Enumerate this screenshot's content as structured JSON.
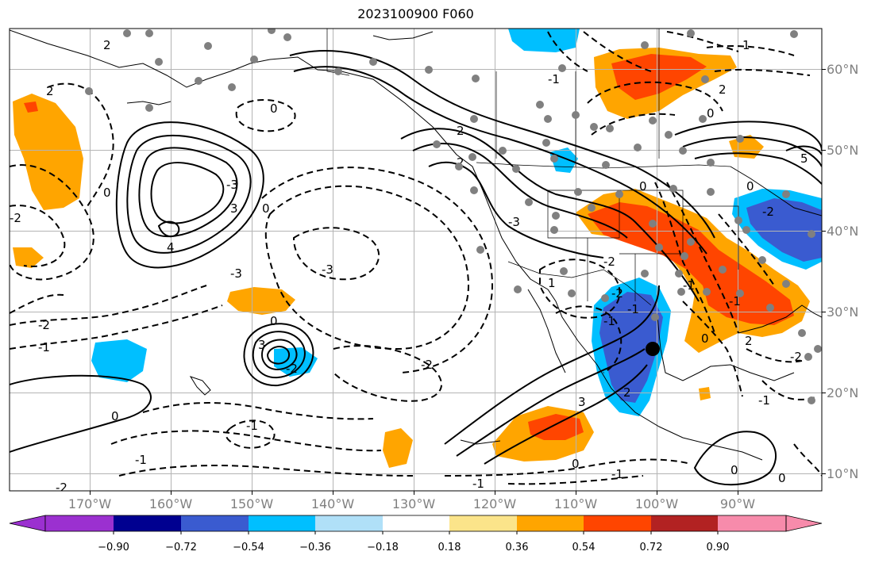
{
  "title": "2023100900 F060",
  "lon_ticks": [
    "170°W",
    "160°W",
    "150°W",
    "140°W",
    "130°W",
    "120°W",
    "110°W",
    "100°W",
    "90°W"
  ],
  "lat_ticks": [
    "60°N",
    "50°N",
    "40°N",
    "30°N",
    "20°N",
    "10°N"
  ],
  "colorbar": {
    "labels": [
      "−0.90",
      "−0.72",
      "−0.54",
      "−0.36",
      "−0.18",
      "0.18",
      "0.36",
      "0.54",
      "0.72",
      "0.90"
    ],
    "colors": [
      "#9b30d0",
      "#000090",
      "#3a5bd0",
      "#00bfff",
      "#b0e0f8",
      "#ffffff",
      "#fbe48a",
      "#ffa500",
      "#ff4500",
      "#b22222",
      "#f78bab"
    ]
  },
  "fill_colors": {
    "orange": "#ffa500",
    "red_orange": "#ff4500",
    "light_blue": "#00bfff",
    "blue": "#3a5bd0"
  },
  "contour_labels": [
    "2",
    "2",
    "0",
    "0",
    "-3",
    "-2",
    "-1",
    "4",
    "3",
    "-3",
    "0",
    "0",
    "3",
    "-2",
    "-3",
    "-2",
    "0",
    "-1",
    "-2",
    "-1",
    "-2",
    "2",
    "-1",
    "2",
    "-3",
    "-2",
    "1",
    "-2",
    "-1",
    "0",
    "-1",
    "-1",
    "0",
    "3",
    "2",
    "1",
    "5",
    "0",
    "0",
    "-2",
    "2",
    "-1",
    "0",
    "2",
    "-1",
    "0",
    "-2",
    "-1",
    "-1",
    "0"
  ]
}
